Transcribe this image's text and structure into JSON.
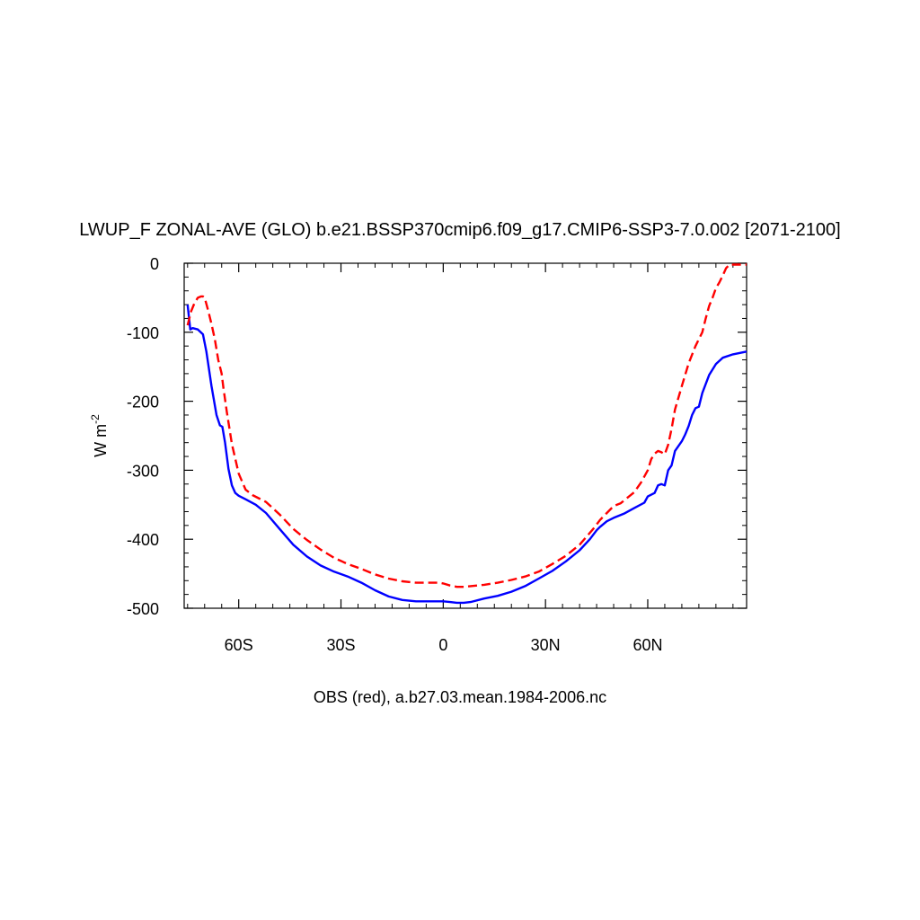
{
  "chart_data": {
    "type": "line",
    "title": "LWUP_F ZONAL-AVE (GLO) b.e21.BSSP370cmip6.f09_g17.CMIP6-SSP3-7.0.002 [2071-2100]",
    "xlabel": "OBS (red), a.b27.03.mean.1984-2006.nc",
    "ylabel": "W m",
    "ylabel_superscript": "-2",
    "xlim": [
      -76,
      89
    ],
    "ylim": [
      -500,
      0
    ],
    "grid": false,
    "x_ticks": [
      {
        "value": -60,
        "label": "60S"
      },
      {
        "value": -30,
        "label": "30S"
      },
      {
        "value": 0,
        "label": "0"
      },
      {
        "value": 30,
        "label": "30N"
      },
      {
        "value": 60,
        "label": "60N"
      }
    ],
    "y_ticks": [
      {
        "value": 0,
        "label": "0"
      },
      {
        "value": -100,
        "label": "-100"
      },
      {
        "value": -200,
        "label": "-200"
      },
      {
        "value": -300,
        "label": "-300"
      },
      {
        "value": -400,
        "label": "-400"
      },
      {
        "value": -500,
        "label": "-500"
      }
    ],
    "series": [
      {
        "color": "#0000ff",
        "dash": "solid",
        "x": [
          -75,
          -74.2,
          -73.5,
          -72,
          -70.5,
          -69.5,
          -68,
          -66.5,
          -65.5,
          -64.8,
          -64,
          -63,
          -62,
          -61,
          -60,
          -58,
          -55,
          -52,
          -48,
          -44,
          -40,
          -36,
          -32,
          -28,
          -24,
          -20,
          -16,
          -12,
          -8,
          -4,
          0,
          2,
          4,
          6,
          8,
          12,
          16,
          20,
          24,
          28,
          32,
          36,
          40,
          43,
          45,
          46,
          48,
          50,
          53,
          56,
          59,
          60,
          62,
          63,
          64,
          65,
          66,
          67,
          68,
          70,
          71,
          72,
          73,
          74,
          75,
          76,
          78,
          80,
          82,
          85,
          89
        ],
        "y": [
          -60,
          -96,
          -94,
          -96,
          -103,
          -128,
          -178,
          -220,
          -235,
          -237,
          -260,
          -298,
          -322,
          -333,
          -337,
          -342,
          -350,
          -362,
          -385,
          -408,
          -425,
          -438,
          -447,
          -454,
          -463,
          -474,
          -483,
          -488,
          -490,
          -490,
          -490,
          -491,
          -492,
          -492,
          -491,
          -486,
          -482,
          -476,
          -468,
          -457,
          -446,
          -432,
          -416,
          -400,
          -387,
          -382,
          -374,
          -369,
          -363,
          -355,
          -347,
          -338,
          -333,
          -322,
          -320,
          -322,
          -300,
          -293,
          -272,
          -258,
          -248,
          -236,
          -220,
          -210,
          -208,
          -188,
          -162,
          -146,
          -137,
          -132,
          -128
        ]
      },
      {
        "color": "#ff0000",
        "dash": "dashed",
        "x": [
          -75,
          -74,
          -73,
          -72,
          -71,
          -70.5,
          -70,
          -69,
          -68,
          -67,
          -66,
          -65,
          -64.5,
          -63.5,
          -62,
          -60,
          -58,
          -56,
          -52,
          -48,
          -44,
          -40,
          -36,
          -32,
          -28,
          -24,
          -20,
          -16,
          -12,
          -8,
          -5,
          -3,
          -1,
          0,
          2,
          4,
          6,
          8,
          12,
          16,
          20,
          24,
          28,
          32,
          36,
          40,
          44,
          46,
          48,
          50,
          52,
          56,
          58,
          60,
          61,
          62,
          63,
          64,
          65,
          66,
          67,
          68,
          70,
          72,
          74,
          75,
          76,
          77,
          78,
          79,
          80,
          81,
          82,
          83,
          84,
          85,
          89
        ],
        "y": [
          -90,
          -70,
          -58,
          -50,
          -48,
          -48,
          -50,
          -68,
          -88,
          -110,
          -140,
          -160,
          -180,
          -215,
          -262,
          -305,
          -328,
          -336,
          -346,
          -364,
          -385,
          -401,
          -415,
          -427,
          -436,
          -443,
          -451,
          -457,
          -461,
          -463,
          -463,
          -463,
          -463,
          -464,
          -467,
          -469,
          -469,
          -468,
          -466,
          -463,
          -459,
          -454,
          -447,
          -436,
          -424,
          -408,
          -385,
          -372,
          -362,
          -352,
          -348,
          -332,
          -318,
          -300,
          -284,
          -276,
          -272,
          -274,
          -277,
          -263,
          -240,
          -212,
          -178,
          -145,
          -120,
          -110,
          -100,
          -80,
          -62,
          -50,
          -36,
          -28,
          -18,
          -7,
          -2,
          -2,
          -2
        ]
      }
    ]
  }
}
